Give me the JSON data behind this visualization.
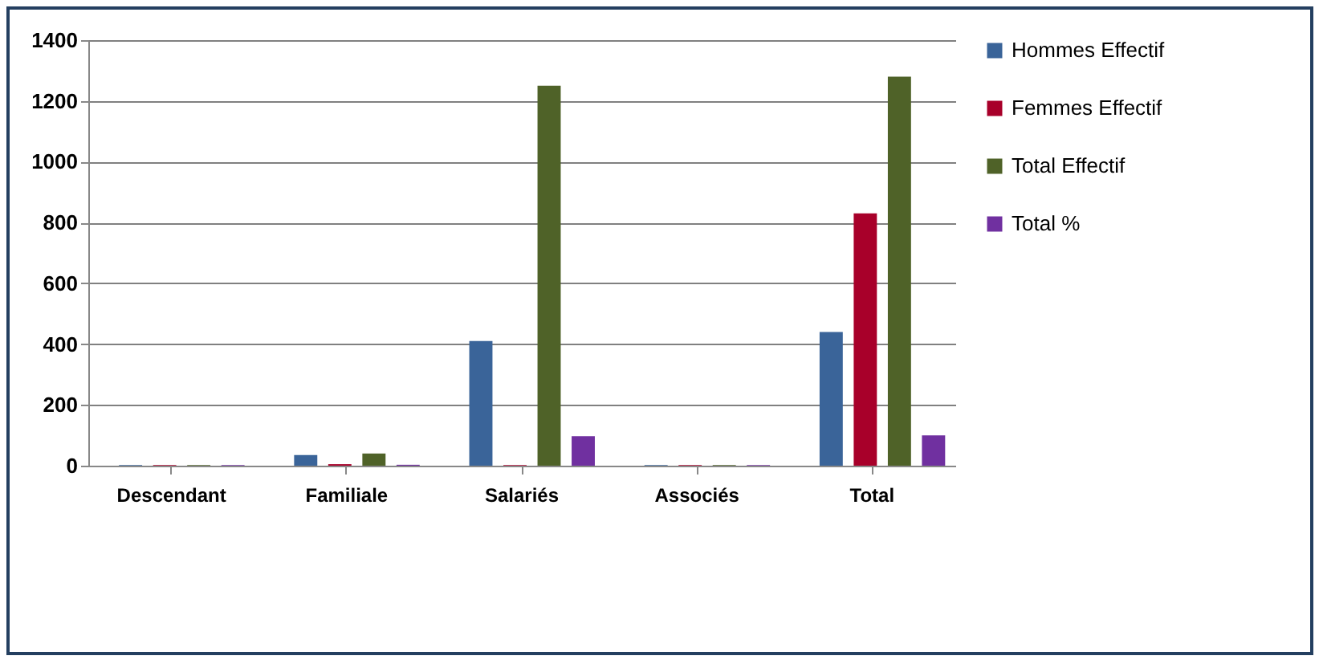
{
  "chart_data": {
    "type": "bar",
    "categories": [
      "Descendant",
      "Familiale",
      "Salariés",
      "Associés",
      "Total"
    ],
    "series": [
      {
        "name": "Hommes Effectif",
        "color": "#3a6499",
        "values": [
          2,
          35,
          410,
          2,
          440
        ]
      },
      {
        "name": "Femmes Effectif",
        "color": "#a8002a",
        "values": [
          2,
          5,
          2,
          2,
          830
        ]
      },
      {
        "name": "Total Effectif",
        "color": "#4f6228",
        "values": [
          2,
          40,
          1250,
          2,
          1280
        ]
      },
      {
        "name": "Total %",
        "color": "#7030a0",
        "values": [
          2,
          3,
          97,
          2,
          100
        ]
      }
    ],
    "ylim": [
      0,
      1400
    ],
    "yticks": [
      0,
      200,
      400,
      600,
      800,
      1000,
      1200,
      1400
    ],
    "grid": "y",
    "legend": "right"
  }
}
